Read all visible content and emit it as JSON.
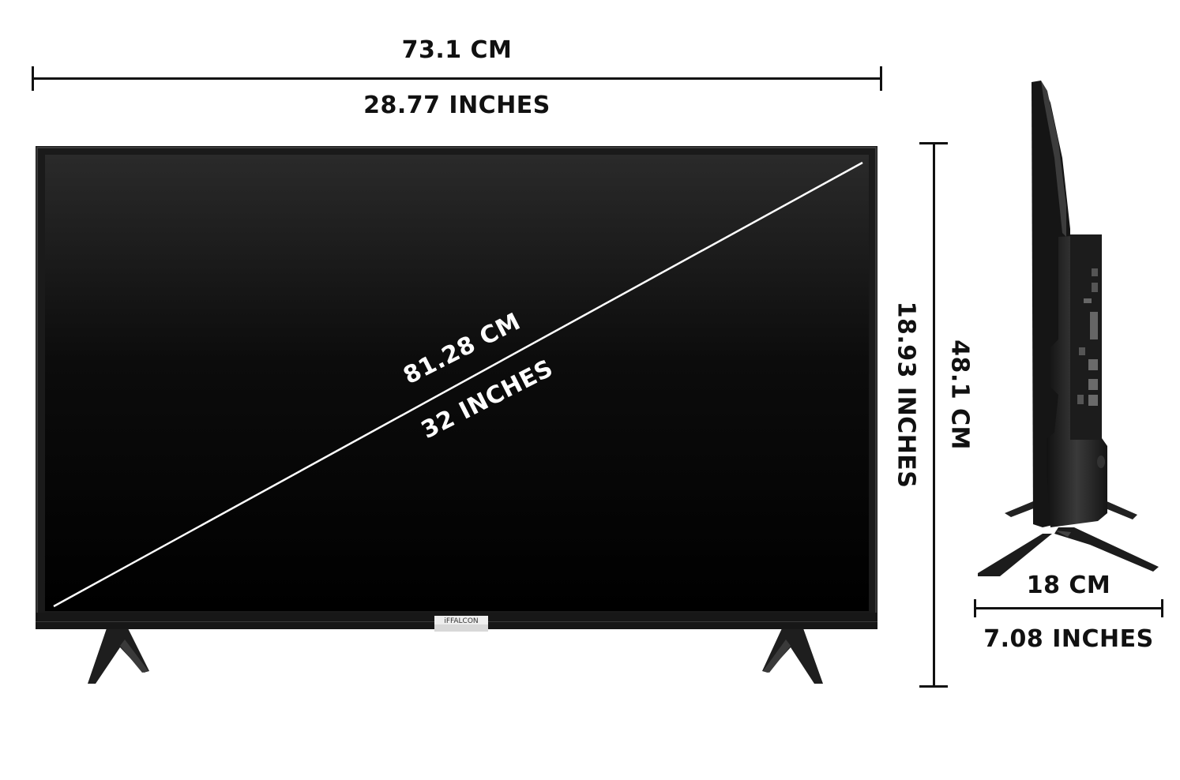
{
  "dimensions": {
    "width": {
      "cm": "73.1 CM",
      "inches": "28.77 INCHES"
    },
    "height": {
      "cm": "48.1 CM",
      "inches": "18.93 INCHES"
    },
    "diagonal": {
      "cm": "81.28 CM",
      "inches": "32 INCHES"
    },
    "depth": {
      "cm": "18 CM",
      "inches": "7.08 INCHES"
    }
  },
  "brand": "iFFALCON",
  "colors": {
    "line": "#111111",
    "screen": "#070707",
    "bezel": "#1a1a1a",
    "diagonal_line": "#ffffff"
  }
}
